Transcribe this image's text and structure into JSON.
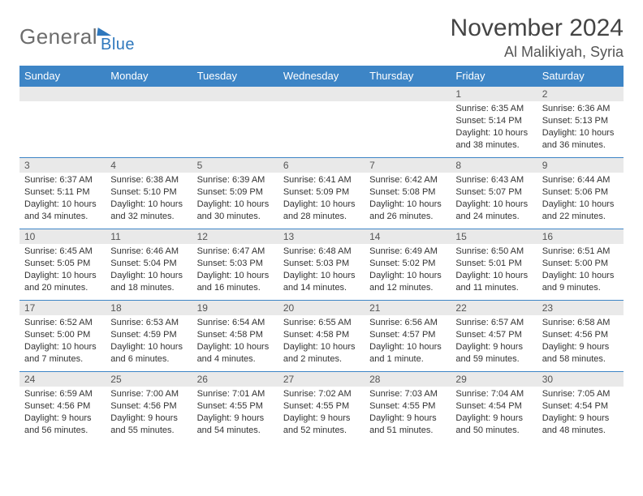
{
  "logo": {
    "text1": "General",
    "text2": "Blue"
  },
  "title": "November 2024",
  "location": "Al Malikiyah, Syria",
  "columns": [
    "Sunday",
    "Monday",
    "Tuesday",
    "Wednesday",
    "Thursday",
    "Friday",
    "Saturday"
  ],
  "colors": {
    "header_bg": "#3d85c6",
    "header_fg": "#ffffff",
    "daynum_bg": "#e9e9e9",
    "rule": "#3d85c6",
    "logo_gray": "#6d6d6d",
    "logo_blue": "#2f78bd"
  },
  "weeks": [
    [
      {
        "n": "",
        "sr": "",
        "ss": "",
        "dl": ""
      },
      {
        "n": "",
        "sr": "",
        "ss": "",
        "dl": ""
      },
      {
        "n": "",
        "sr": "",
        "ss": "",
        "dl": ""
      },
      {
        "n": "",
        "sr": "",
        "ss": "",
        "dl": ""
      },
      {
        "n": "",
        "sr": "",
        "ss": "",
        "dl": ""
      },
      {
        "n": "1",
        "sr": "Sunrise: 6:35 AM",
        "ss": "Sunset: 5:14 PM",
        "dl": "Daylight: 10 hours and 38 minutes."
      },
      {
        "n": "2",
        "sr": "Sunrise: 6:36 AM",
        "ss": "Sunset: 5:13 PM",
        "dl": "Daylight: 10 hours and 36 minutes."
      }
    ],
    [
      {
        "n": "3",
        "sr": "Sunrise: 6:37 AM",
        "ss": "Sunset: 5:11 PM",
        "dl": "Daylight: 10 hours and 34 minutes."
      },
      {
        "n": "4",
        "sr": "Sunrise: 6:38 AM",
        "ss": "Sunset: 5:10 PM",
        "dl": "Daylight: 10 hours and 32 minutes."
      },
      {
        "n": "5",
        "sr": "Sunrise: 6:39 AM",
        "ss": "Sunset: 5:09 PM",
        "dl": "Daylight: 10 hours and 30 minutes."
      },
      {
        "n": "6",
        "sr": "Sunrise: 6:41 AM",
        "ss": "Sunset: 5:09 PM",
        "dl": "Daylight: 10 hours and 28 minutes."
      },
      {
        "n": "7",
        "sr": "Sunrise: 6:42 AM",
        "ss": "Sunset: 5:08 PM",
        "dl": "Daylight: 10 hours and 26 minutes."
      },
      {
        "n": "8",
        "sr": "Sunrise: 6:43 AM",
        "ss": "Sunset: 5:07 PM",
        "dl": "Daylight: 10 hours and 24 minutes."
      },
      {
        "n": "9",
        "sr": "Sunrise: 6:44 AM",
        "ss": "Sunset: 5:06 PM",
        "dl": "Daylight: 10 hours and 22 minutes."
      }
    ],
    [
      {
        "n": "10",
        "sr": "Sunrise: 6:45 AM",
        "ss": "Sunset: 5:05 PM",
        "dl": "Daylight: 10 hours and 20 minutes."
      },
      {
        "n": "11",
        "sr": "Sunrise: 6:46 AM",
        "ss": "Sunset: 5:04 PM",
        "dl": "Daylight: 10 hours and 18 minutes."
      },
      {
        "n": "12",
        "sr": "Sunrise: 6:47 AM",
        "ss": "Sunset: 5:03 PM",
        "dl": "Daylight: 10 hours and 16 minutes."
      },
      {
        "n": "13",
        "sr": "Sunrise: 6:48 AM",
        "ss": "Sunset: 5:03 PM",
        "dl": "Daylight: 10 hours and 14 minutes."
      },
      {
        "n": "14",
        "sr": "Sunrise: 6:49 AM",
        "ss": "Sunset: 5:02 PM",
        "dl": "Daylight: 10 hours and 12 minutes."
      },
      {
        "n": "15",
        "sr": "Sunrise: 6:50 AM",
        "ss": "Sunset: 5:01 PM",
        "dl": "Daylight: 10 hours and 11 minutes."
      },
      {
        "n": "16",
        "sr": "Sunrise: 6:51 AM",
        "ss": "Sunset: 5:00 PM",
        "dl": "Daylight: 10 hours and 9 minutes."
      }
    ],
    [
      {
        "n": "17",
        "sr": "Sunrise: 6:52 AM",
        "ss": "Sunset: 5:00 PM",
        "dl": "Daylight: 10 hours and 7 minutes."
      },
      {
        "n": "18",
        "sr": "Sunrise: 6:53 AM",
        "ss": "Sunset: 4:59 PM",
        "dl": "Daylight: 10 hours and 6 minutes."
      },
      {
        "n": "19",
        "sr": "Sunrise: 6:54 AM",
        "ss": "Sunset: 4:58 PM",
        "dl": "Daylight: 10 hours and 4 minutes."
      },
      {
        "n": "20",
        "sr": "Sunrise: 6:55 AM",
        "ss": "Sunset: 4:58 PM",
        "dl": "Daylight: 10 hours and 2 minutes."
      },
      {
        "n": "21",
        "sr": "Sunrise: 6:56 AM",
        "ss": "Sunset: 4:57 PM",
        "dl": "Daylight: 10 hours and 1 minute."
      },
      {
        "n": "22",
        "sr": "Sunrise: 6:57 AM",
        "ss": "Sunset: 4:57 PM",
        "dl": "Daylight: 9 hours and 59 minutes."
      },
      {
        "n": "23",
        "sr": "Sunrise: 6:58 AM",
        "ss": "Sunset: 4:56 PM",
        "dl": "Daylight: 9 hours and 58 minutes."
      }
    ],
    [
      {
        "n": "24",
        "sr": "Sunrise: 6:59 AM",
        "ss": "Sunset: 4:56 PM",
        "dl": "Daylight: 9 hours and 56 minutes."
      },
      {
        "n": "25",
        "sr": "Sunrise: 7:00 AM",
        "ss": "Sunset: 4:56 PM",
        "dl": "Daylight: 9 hours and 55 minutes."
      },
      {
        "n": "26",
        "sr": "Sunrise: 7:01 AM",
        "ss": "Sunset: 4:55 PM",
        "dl": "Daylight: 9 hours and 54 minutes."
      },
      {
        "n": "27",
        "sr": "Sunrise: 7:02 AM",
        "ss": "Sunset: 4:55 PM",
        "dl": "Daylight: 9 hours and 52 minutes."
      },
      {
        "n": "28",
        "sr": "Sunrise: 7:03 AM",
        "ss": "Sunset: 4:55 PM",
        "dl": "Daylight: 9 hours and 51 minutes."
      },
      {
        "n": "29",
        "sr": "Sunrise: 7:04 AM",
        "ss": "Sunset: 4:54 PM",
        "dl": "Daylight: 9 hours and 50 minutes."
      },
      {
        "n": "30",
        "sr": "Sunrise: 7:05 AM",
        "ss": "Sunset: 4:54 PM",
        "dl": "Daylight: 9 hours and 48 minutes."
      }
    ]
  ]
}
